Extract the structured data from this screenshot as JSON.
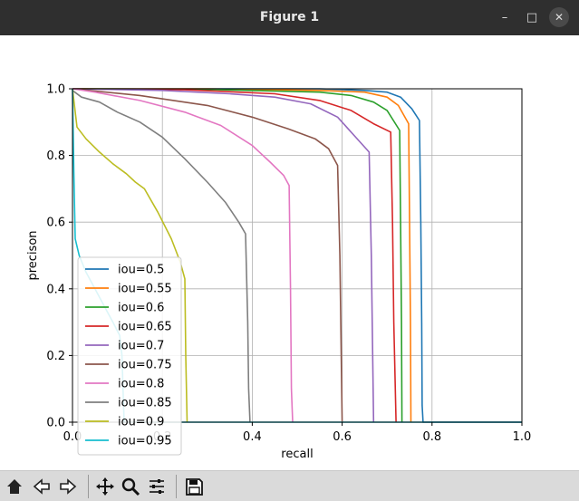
{
  "window": {
    "title": "Figure 1"
  },
  "toolbar": {
    "buttons": [
      "home",
      "back",
      "forward",
      "pan",
      "zoom",
      "configure-subplots",
      "save"
    ]
  },
  "chart_data": {
    "type": "line",
    "xlabel": "recall",
    "ylabel": "precison",
    "xlim": [
      0.0,
      1.0
    ],
    "ylim": [
      0.0,
      1.0
    ],
    "xticks": [
      "0.0",
      "0.2",
      "0.4",
      "0.6",
      "0.8",
      "1.0"
    ],
    "yticks": [
      "0.0",
      "0.2",
      "0.4",
      "0.6",
      "0.8",
      "1.0"
    ],
    "grid": true,
    "legend_position": "lower-left",
    "series": [
      {
        "name": "iou=0.5",
        "color": "#1f77b4",
        "points": [
          [
            0.0,
            1.0
          ],
          [
            0.3,
            1.0
          ],
          [
            0.55,
            1.0
          ],
          [
            0.65,
            0.995
          ],
          [
            0.7,
            0.99
          ],
          [
            0.73,
            0.975
          ],
          [
            0.755,
            0.94
          ],
          [
            0.772,
            0.905
          ],
          [
            0.775,
            0.6
          ],
          [
            0.777,
            0.3
          ],
          [
            0.778,
            0.05
          ],
          [
            0.78,
            0.0
          ],
          [
            1.0,
            0.0
          ]
        ]
      },
      {
        "name": "iou=0.55",
        "color": "#ff7f0e",
        "points": [
          [
            0.0,
            1.0
          ],
          [
            0.3,
            1.0
          ],
          [
            0.55,
            0.995
          ],
          [
            0.65,
            0.99
          ],
          [
            0.7,
            0.975
          ],
          [
            0.725,
            0.95
          ],
          [
            0.748,
            0.895
          ],
          [
            0.75,
            0.6
          ],
          [
            0.752,
            0.3
          ],
          [
            0.753,
            0.0
          ]
        ]
      },
      {
        "name": "iou=0.6",
        "color": "#2ca02c",
        "points": [
          [
            0.0,
            1.0
          ],
          [
            0.3,
            0.998
          ],
          [
            0.55,
            0.99
          ],
          [
            0.62,
            0.98
          ],
          [
            0.67,
            0.96
          ],
          [
            0.7,
            0.935
          ],
          [
            0.728,
            0.875
          ],
          [
            0.73,
            0.6
          ],
          [
            0.732,
            0.3
          ],
          [
            0.733,
            0.0
          ]
        ]
      },
      {
        "name": "iou=0.65",
        "color": "#d62728",
        "points": [
          [
            0.0,
            1.0
          ],
          [
            0.25,
            0.997
          ],
          [
            0.45,
            0.985
          ],
          [
            0.55,
            0.965
          ],
          [
            0.62,
            0.935
          ],
          [
            0.67,
            0.895
          ],
          [
            0.708,
            0.87
          ],
          [
            0.712,
            0.6
          ],
          [
            0.715,
            0.3
          ],
          [
            0.72,
            0.0
          ]
        ]
      },
      {
        "name": "iou=0.7",
        "color": "#9467bd",
        "points": [
          [
            0.0,
            1.0
          ],
          [
            0.2,
            0.995
          ],
          [
            0.35,
            0.985
          ],
          [
            0.45,
            0.975
          ],
          [
            0.53,
            0.955
          ],
          [
            0.59,
            0.915
          ],
          [
            0.63,
            0.855
          ],
          [
            0.66,
            0.81
          ],
          [
            0.665,
            0.5
          ],
          [
            0.668,
            0.2
          ],
          [
            0.67,
            0.0
          ]
        ]
      },
      {
        "name": "iou=0.75",
        "color": "#8c564b",
        "points": [
          [
            0.0,
            1.0
          ],
          [
            0.15,
            0.98
          ],
          [
            0.3,
            0.95
          ],
          [
            0.4,
            0.915
          ],
          [
            0.48,
            0.88
          ],
          [
            0.54,
            0.85
          ],
          [
            0.57,
            0.82
          ],
          [
            0.59,
            0.77
          ],
          [
            0.595,
            0.5
          ],
          [
            0.598,
            0.2
          ],
          [
            0.6,
            0.0
          ]
        ]
      },
      {
        "name": "iou=0.8",
        "color": "#e377c2",
        "points": [
          [
            0.0,
            1.0
          ],
          [
            0.05,
            0.99
          ],
          [
            0.15,
            0.965
          ],
          [
            0.25,
            0.93
          ],
          [
            0.33,
            0.89
          ],
          [
            0.4,
            0.83
          ],
          [
            0.44,
            0.78
          ],
          [
            0.47,
            0.74
          ],
          [
            0.482,
            0.71
          ],
          [
            0.485,
            0.4
          ],
          [
            0.487,
            0.1
          ],
          [
            0.49,
            0.0
          ]
        ]
      },
      {
        "name": "iou=0.85",
        "color": "#7f7f7f",
        "points": [
          [
            0.0,
            0.995
          ],
          [
            0.02,
            0.975
          ],
          [
            0.06,
            0.96
          ],
          [
            0.1,
            0.93
          ],
          [
            0.15,
            0.9
          ],
          [
            0.2,
            0.855
          ],
          [
            0.25,
            0.79
          ],
          [
            0.3,
            0.72
          ],
          [
            0.34,
            0.66
          ],
          [
            0.37,
            0.6
          ],
          [
            0.385,
            0.565
          ],
          [
            0.39,
            0.3
          ],
          [
            0.392,
            0.1
          ],
          [
            0.395,
            0.0
          ]
        ]
      },
      {
        "name": "iou=0.9",
        "color": "#bcbd22",
        "points": [
          [
            0.0,
            1.0
          ],
          [
            0.01,
            0.885
          ],
          [
            0.03,
            0.85
          ],
          [
            0.06,
            0.81
          ],
          [
            0.09,
            0.775
          ],
          [
            0.12,
            0.745
          ],
          [
            0.14,
            0.72
          ],
          [
            0.16,
            0.7
          ],
          [
            0.19,
            0.63
          ],
          [
            0.22,
            0.55
          ],
          [
            0.24,
            0.48
          ],
          [
            0.25,
            0.43
          ],
          [
            0.252,
            0.2
          ],
          [
            0.255,
            0.0
          ]
        ]
      },
      {
        "name": "iou=0.95",
        "color": "#17becf",
        "points": [
          [
            0.0,
            1.0
          ],
          [
            0.003,
            0.75
          ],
          [
            0.006,
            0.55
          ],
          [
            0.015,
            0.5
          ],
          [
            0.03,
            0.45
          ],
          [
            0.05,
            0.4
          ],
          [
            0.07,
            0.35
          ],
          [
            0.09,
            0.3
          ],
          [
            0.105,
            0.26
          ],
          [
            0.11,
            0.2
          ],
          [
            0.113,
            0.08
          ],
          [
            0.115,
            0.0
          ],
          [
            1.0,
            0.0
          ]
        ]
      }
    ]
  }
}
